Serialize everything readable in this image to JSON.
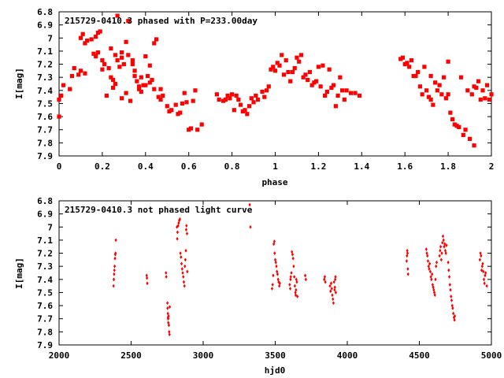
{
  "chart_data": [
    {
      "type": "scatter",
      "title": "215729-0410.3 phased with P=233.00day",
      "xlabel": "phase",
      "ylabel": "I[mag]",
      "xlim": [
        0,
        2
      ],
      "ylim": [
        6.8,
        7.9
      ],
      "y_inverted": true,
      "grid": false,
      "x_ticks": [
        "0",
        "0.2",
        "0.4",
        "0.6",
        "0.8",
        "1",
        "1.2",
        "1.4",
        "1.6",
        "1.8",
        "2"
      ],
      "y_ticks": [
        "6.8",
        "6.9",
        "7",
        "7.1",
        "7.2",
        "7.3",
        "7.4",
        "7.5",
        "7.6",
        "7.7",
        "7.8",
        "7.9"
      ],
      "color": "#ff0000",
      "marker": "filled-square",
      "points": [
        [
          0.0,
          7.6
        ],
        [
          0.0,
          7.47
        ],
        [
          0.01,
          7.44
        ],
        [
          0.02,
          7.36
        ],
        [
          0.05,
          7.39
        ],
        [
          0.06,
          7.29
        ],
        [
          0.07,
          7.23
        ],
        [
          0.09,
          7.28
        ],
        [
          0.1,
          7.25
        ],
        [
          0.1,
          7.0
        ],
        [
          0.11,
          6.97
        ],
        [
          0.12,
          7.27
        ],
        [
          0.12,
          7.04
        ],
        [
          0.13,
          7.02
        ],
        [
          0.15,
          7.01
        ],
        [
          0.16,
          7.12
        ],
        [
          0.17,
          7.14
        ],
        [
          0.17,
          6.99
        ],
        [
          0.18,
          7.11
        ],
        [
          0.18,
          6.96
        ],
        [
          0.19,
          6.95
        ],
        [
          0.2,
          7.17
        ],
        [
          0.2,
          7.24
        ],
        [
          0.21,
          7.2
        ],
        [
          0.22,
          7.44
        ],
        [
          0.23,
          7.23
        ],
        [
          0.24,
          7.3
        ],
        [
          0.24,
          7.08
        ],
        [
          0.25,
          7.38
        ],
        [
          0.25,
          7.32
        ],
        [
          0.26,
          7.35
        ],
        [
          0.26,
          7.13
        ],
        [
          0.27,
          6.83
        ],
        [
          0.27,
          7.17
        ],
        [
          0.28,
          7.22
        ],
        [
          0.29,
          7.15
        ],
        [
          0.29,
          7.11
        ],
        [
          0.29,
          7.46
        ],
        [
          0.3,
          7.2
        ],
        [
          0.31,
          7.42
        ],
        [
          0.31,
          7.03
        ],
        [
          0.32,
          7.13
        ],
        [
          0.32,
          6.87
        ],
        [
          0.33,
          7.48
        ],
        [
          0.34,
          7.17
        ],
        [
          0.34,
          7.2
        ],
        [
          0.35,
          7.29
        ],
        [
          0.35,
          7.25
        ],
        [
          0.36,
          7.33
        ],
        [
          0.37,
          7.37
        ],
        [
          0.37,
          7.39
        ],
        [
          0.38,
          7.3
        ],
        [
          0.38,
          7.41
        ],
        [
          0.39,
          7.36
        ],
        [
          0.4,
          7.14
        ],
        [
          0.4,
          7.36
        ],
        [
          0.41,
          7.29
        ],
        [
          0.42,
          7.34
        ],
        [
          0.42,
          7.21
        ],
        [
          0.43,
          7.32
        ],
        [
          0.44,
          7.04
        ],
        [
          0.44,
          7.39
        ],
        [
          0.45,
          7.01
        ],
        [
          0.46,
          7.45
        ],
        [
          0.47,
          7.39
        ],
        [
          0.47,
          7.47
        ],
        [
          0.48,
          7.44
        ],
        [
          0.5,
          7.52
        ],
        [
          0.51,
          7.56
        ],
        [
          0.52,
          7.55
        ],
        [
          0.54,
          7.51
        ],
        [
          0.55,
          7.58
        ],
        [
          0.56,
          7.57
        ],
        [
          0.57,
          7.5
        ],
        [
          0.58,
          7.42
        ],
        [
          0.59,
          7.49
        ],
        [
          0.6,
          7.7
        ],
        [
          0.61,
          7.69
        ],
        [
          0.62,
          7.48
        ],
        [
          0.63,
          7.4
        ],
        [
          0.64,
          7.7
        ],
        [
          0.66,
          7.66
        ],
        [
          0.73,
          7.43
        ],
        [
          0.74,
          7.47
        ],
        [
          0.76,
          7.48
        ],
        [
          0.77,
          7.47
        ],
        [
          0.78,
          7.44
        ],
        [
          0.79,
          7.46
        ],
        [
          0.8,
          7.43
        ],
        [
          0.81,
          7.55
        ],
        [
          0.82,
          7.44
        ],
        [
          0.83,
          7.47
        ],
        [
          0.84,
          7.51
        ],
        [
          0.85,
          7.56
        ],
        [
          0.86,
          7.55
        ],
        [
          0.87,
          7.58
        ],
        [
          0.88,
          7.52
        ],
        [
          0.89,
          7.46
        ],
        [
          0.9,
          7.49
        ],
        [
          0.91,
          7.44
        ],
        [
          0.92,
          7.47
        ],
        [
          0.94,
          7.41
        ],
        [
          0.95,
          7.45
        ],
        [
          0.96,
          7.4
        ],
        [
          0.97,
          7.37
        ],
        [
          0.98,
          7.24
        ],
        [
          0.99,
          7.22
        ],
        [
          1.0,
          7.25
        ],
        [
          1.01,
          7.19
        ],
        [
          1.02,
          7.21
        ],
        [
          1.03,
          7.13
        ],
        [
          1.04,
          7.28
        ],
        [
          1.05,
          7.17
        ],
        [
          1.06,
          7.26
        ],
        [
          1.07,
          7.33
        ],
        [
          1.08,
          7.26
        ],
        [
          1.09,
          7.23
        ],
        [
          1.1,
          7.15
        ],
        [
          1.11,
          7.18
        ],
        [
          1.12,
          7.13
        ],
        [
          1.13,
          7.3
        ],
        [
          1.14,
          7.28
        ],
        [
          1.15,
          7.32
        ],
        [
          1.16,
          7.26
        ],
        [
          1.17,
          7.36
        ],
        [
          1.18,
          7.34
        ],
        [
          1.19,
          7.33
        ],
        [
          1.2,
          7.22
        ],
        [
          1.21,
          7.37
        ],
        [
          1.22,
          7.21
        ],
        [
          1.23,
          7.44
        ],
        [
          1.24,
          7.41
        ],
        [
          1.25,
          7.24
        ],
        [
          1.26,
          7.38
        ],
        [
          1.27,
          7.36
        ],
        [
          1.28,
          7.52
        ],
        [
          1.29,
          7.44
        ],
        [
          1.3,
          7.3
        ],
        [
          1.31,
          7.4
        ],
        [
          1.32,
          7.47
        ],
        [
          1.33,
          7.4
        ],
        [
          1.35,
          7.42
        ],
        [
          1.37,
          7.42
        ],
        [
          1.39,
          7.44
        ],
        [
          1.58,
          7.16
        ],
        [
          1.59,
          7.15
        ],
        [
          1.6,
          7.2
        ],
        [
          1.61,
          7.19
        ],
        [
          1.62,
          7.22
        ],
        [
          1.63,
          7.17
        ],
        [
          1.64,
          7.29
        ],
        [
          1.65,
          7.29
        ],
        [
          1.66,
          7.26
        ],
        [
          1.67,
          7.37
        ],
        [
          1.68,
          7.43
        ],
        [
          1.69,
          7.22
        ],
        [
          1.7,
          7.4
        ],
        [
          1.71,
          7.45
        ],
        [
          1.72,
          7.29
        ],
        [
          1.72,
          7.47
        ],
        [
          1.73,
          7.51
        ],
        [
          1.74,
          7.34
        ],
        [
          1.75,
          7.4
        ],
        [
          1.76,
          7.36
        ],
        [
          1.77,
          7.43
        ],
        [
          1.78,
          7.3
        ],
        [
          1.79,
          7.46
        ],
        [
          1.8,
          7.43
        ],
        [
          1.8,
          7.18
        ],
        [
          1.81,
          7.57
        ],
        [
          1.82,
          7.62
        ],
        [
          1.83,
          7.66
        ],
        [
          1.84,
          7.67
        ],
        [
          1.85,
          7.68
        ],
        [
          1.86,
          7.3
        ],
        [
          1.87,
          7.74
        ],
        [
          1.88,
          7.7
        ],
        [
          1.89,
          7.4
        ],
        [
          1.9,
          7.77
        ],
        [
          1.91,
          7.43
        ],
        [
          1.92,
          7.82
        ],
        [
          1.92,
          7.37
        ],
        [
          1.93,
          7.38
        ],
        [
          1.94,
          7.33
        ],
        [
          1.95,
          7.47
        ],
        [
          1.96,
          7.4
        ],
        [
          1.97,
          7.46
        ],
        [
          1.98,
          7.36
        ],
        [
          1.99,
          7.47
        ],
        [
          2.0,
          7.43
        ]
      ]
    },
    {
      "type": "scatter",
      "title": "215729-0410.3 not phased light curve",
      "xlabel": "hjd0",
      "ylabel": "I[mag]",
      "xlim": [
        2000,
        5000
      ],
      "ylim": [
        6.8,
        7.9
      ],
      "y_inverted": true,
      "grid": false,
      "x_ticks": [
        "2000",
        "2500",
        "3000",
        "3500",
        "4000",
        "4500",
        "5000"
      ],
      "y_ticks": [
        "6.8",
        "6.9",
        "7",
        "7.1",
        "7.2",
        "7.3",
        "7.4",
        "7.5",
        "7.6",
        "7.7",
        "7.8",
        "7.9"
      ],
      "color": "#ff0000",
      "marker": "small-diamond",
      "points": [
        [
          2378,
          7.45
        ],
        [
          2380,
          7.4
        ],
        [
          2382,
          7.36
        ],
        [
          2384,
          7.33
        ],
        [
          2386,
          7.3
        ],
        [
          2388,
          7.24
        ],
        [
          2390,
          7.21
        ],
        [
          2392,
          7.2
        ],
        [
          2394,
          7.1
        ],
        [
          2608,
          7.37
        ],
        [
          2610,
          7.39
        ],
        [
          2612,
          7.43
        ],
        [
          2742,
          7.35
        ],
        [
          2744,
          7.38
        ],
        [
          2752,
          7.58
        ],
        [
          2753,
          7.62
        ],
        [
          2755,
          7.66
        ],
        [
          2756,
          7.69
        ],
        [
          2757,
          7.7
        ],
        [
          2758,
          7.73
        ],
        [
          2760,
          7.68
        ],
        [
          2762,
          7.75
        ],
        [
          2764,
          7.8
        ],
        [
          2766,
          7.82
        ],
        [
          2768,
          7.61
        ],
        [
          2818,
          7.0
        ],
        [
          2820,
          7.09
        ],
        [
          2822,
          7.04
        ],
        [
          2826,
          6.99
        ],
        [
          2830,
          6.97
        ],
        [
          2834,
          6.95
        ],
        [
          2838,
          6.94
        ],
        [
          2842,
          7.2
        ],
        [
          2846,
          7.23
        ],
        [
          2850,
          7.28
        ],
        [
          2854,
          7.32
        ],
        [
          2858,
          7.35
        ],
        [
          2862,
          7.38
        ],
        [
          2866,
          7.42
        ],
        [
          2870,
          7.45
        ],
        [
          2873,
          7.3
        ],
        [
          2876,
          7.25
        ],
        [
          2880,
          7.18
        ],
        [
          2882,
          7.02
        ],
        [
          2884,
          6.99
        ],
        [
          2888,
          7.05
        ],
        [
          2890,
          7.34
        ],
        [
          3323,
          6.83
        ],
        [
          3328,
          7.0
        ],
        [
          3478,
          7.47
        ],
        [
          3482,
          7.44
        ],
        [
          3486,
          7.37
        ],
        [
          3490,
          7.13
        ],
        [
          3494,
          7.11
        ],
        [
          3496,
          7.2
        ],
        [
          3500,
          7.25
        ],
        [
          3504,
          7.27
        ],
        [
          3508,
          7.3
        ],
        [
          3512,
          7.34
        ],
        [
          3516,
          7.36
        ],
        [
          3520,
          7.4
        ],
        [
          3524,
          7.42
        ],
        [
          3528,
          7.45
        ],
        [
          3532,
          7.43
        ],
        [
          3600,
          7.44
        ],
        [
          3604,
          7.47
        ],
        [
          3606,
          7.4
        ],
        [
          3608,
          7.38
        ],
        [
          3612,
          7.35
        ],
        [
          3616,
          7.19
        ],
        [
          3620,
          7.21
        ],
        [
          3624,
          7.24
        ],
        [
          3628,
          7.3
        ],
        [
          3632,
          7.38
        ],
        [
          3636,
          7.45
        ],
        [
          3640,
          7.5
        ],
        [
          3642,
          7.52
        ],
        [
          3644,
          7.48
        ],
        [
          3646,
          7.4
        ],
        [
          3650,
          7.42
        ],
        [
          3654,
          7.53
        ],
        [
          3708,
          7.37
        ],
        [
          3712,
          7.4
        ],
        [
          3840,
          7.4
        ],
        [
          3844,
          7.38
        ],
        [
          3848,
          7.42
        ],
        [
          3880,
          7.45
        ],
        [
          3884,
          7.49
        ],
        [
          3888,
          7.43
        ],
        [
          3892,
          7.47
        ],
        [
          3896,
          7.52
        ],
        [
          3900,
          7.55
        ],
        [
          3904,
          7.58
        ],
        [
          3908,
          7.42
        ],
        [
          3912,
          7.48
        ],
        [
          3914,
          7.46
        ],
        [
          3916,
          7.4
        ],
        [
          3918,
          7.38
        ],
        [
          3920,
          7.5
        ],
        [
          4412,
          7.26
        ],
        [
          4414,
          7.22
        ],
        [
          4416,
          7.18
        ],
        [
          4418,
          7.2
        ],
        [
          4420,
          7.32
        ],
        [
          4422,
          7.36
        ],
        [
          4548,
          7.17
        ],
        [
          4552,
          7.2
        ],
        [
          4556,
          7.22
        ],
        [
          4560,
          7.26
        ],
        [
          4564,
          7.3
        ],
        [
          4568,
          7.32
        ],
        [
          4572,
          7.28
        ],
        [
          4576,
          7.34
        ],
        [
          4580,
          7.38
        ],
        [
          4584,
          7.4
        ],
        [
          4588,
          7.36
        ],
        [
          4592,
          7.44
        ],
        [
          4596,
          7.46
        ],
        [
          4600,
          7.48
        ],
        [
          4604,
          7.5
        ],
        [
          4608,
          7.52
        ],
        [
          4612,
          7.4
        ],
        [
          4616,
          7.3
        ],
        [
          4620,
          7.27
        ],
        [
          4640,
          7.22
        ],
        [
          4644,
          7.18
        ],
        [
          4648,
          7.15
        ],
        [
          4652,
          7.25
        ],
        [
          4656,
          7.2
        ],
        [
          4660,
          7.12
        ],
        [
          4664,
          7.07
        ],
        [
          4668,
          7.1
        ],
        [
          4672,
          7.15
        ],
        [
          4676,
          7.13
        ],
        [
          4680,
          7.18
        ],
        [
          4684,
          7.2
        ],
        [
          4688,
          7.14
        ],
        [
          4700,
          7.27
        ],
        [
          4704,
          7.33
        ],
        [
          4708,
          7.38
        ],
        [
          4712,
          7.44
        ],
        [
          4716,
          7.48
        ],
        [
          4720,
          7.53
        ],
        [
          4724,
          7.56
        ],
        [
          4728,
          7.6
        ],
        [
          4732,
          7.62
        ],
        [
          4736,
          7.66
        ],
        [
          4740,
          7.69
        ],
        [
          4744,
          7.71
        ],
        [
          4746,
          7.68
        ],
        [
          4920,
          7.25
        ],
        [
          4924,
          7.2
        ],
        [
          4928,
          7.22
        ],
        [
          4932,
          7.33
        ],
        [
          4936,
          7.3
        ],
        [
          4940,
          7.28
        ],
        [
          4944,
          7.34
        ],
        [
          4948,
          7.4
        ],
        [
          4952,
          7.43
        ],
        [
          4956,
          7.37
        ],
        [
          4960,
          7.35
        ],
        [
          4968,
          7.45
        ]
      ]
    }
  ]
}
